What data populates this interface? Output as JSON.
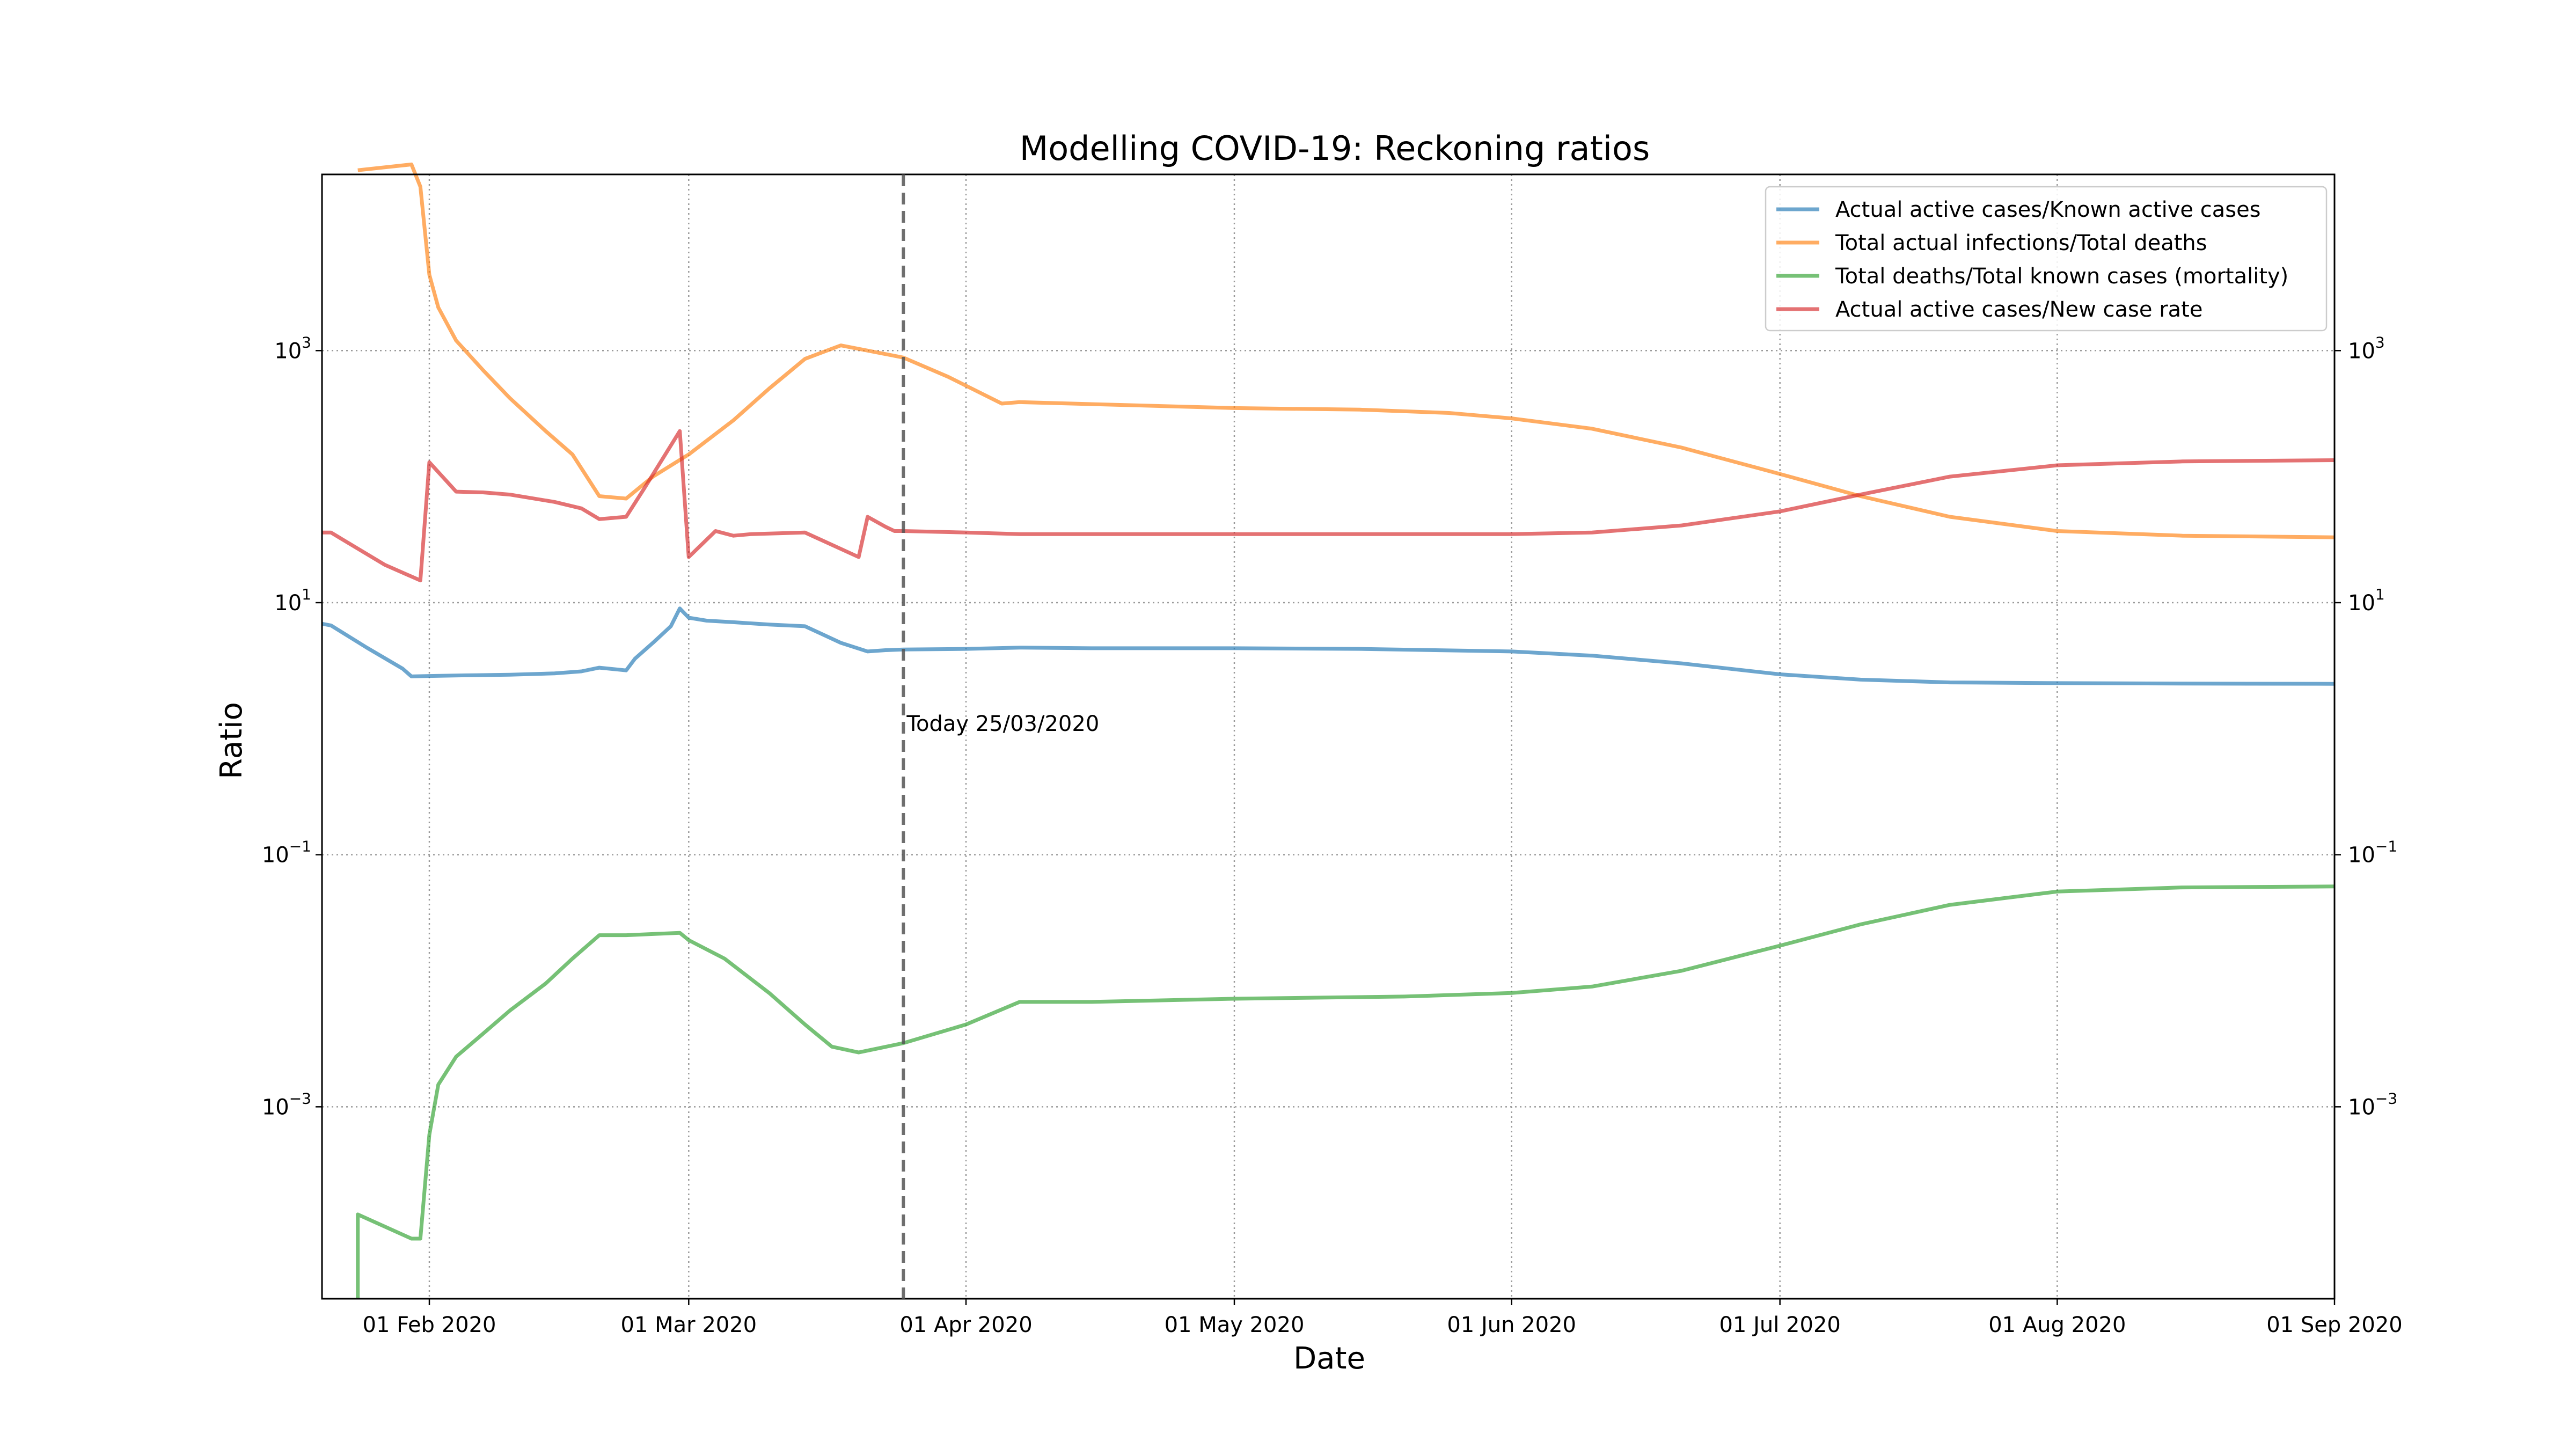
{
  "chart_data": {
    "type": "line",
    "title": "Modelling COVID-19: Reckoning ratios",
    "xlabel": "Date",
    "ylabel": "Ratio",
    "yscale": "log",
    "xlim": [
      "2020-01-20",
      "2020-09-01"
    ],
    "ylim": [
      3e-05,
      25000
    ],
    "grid": true,
    "legend_position": "top-right",
    "x_ticks": [
      {
        "date": "2020-02-01",
        "label": "01 Feb 2020"
      },
      {
        "date": "2020-03-01",
        "label": "01 Mar 2020"
      },
      {
        "date": "2020-04-01",
        "label": "01 Apr 2020"
      },
      {
        "date": "2020-05-01",
        "label": "01 May 2020"
      },
      {
        "date": "2020-06-01",
        "label": "01 Jun 2020"
      },
      {
        "date": "2020-07-01",
        "label": "01 Jul 2020"
      },
      {
        "date": "2020-08-01",
        "label": "01 Aug 2020"
      },
      {
        "date": "2020-09-01",
        "label": "01 Sep 2020"
      }
    ],
    "y_ticks": [
      {
        "value": 0.001,
        "base": "10",
        "exp": "−3"
      },
      {
        "value": 0.1,
        "base": "10",
        "exp": "−1"
      },
      {
        "value": 10,
        "base": "10",
        "exp": "1"
      },
      {
        "value": 1000,
        "base": "10",
        "exp": "3"
      }
    ],
    "annotation": {
      "date": "2020-03-25",
      "text": "Today 25/03/2020",
      "y": 1.1
    },
    "series": [
      {
        "name": "Actual active cases/Known active cases",
        "color": "#1f77b4",
        "points": [
          [
            "2020-01-20",
            6.8
          ],
          [
            "2020-01-21",
            6.6
          ],
          [
            "2020-01-25",
            4.4
          ],
          [
            "2020-01-29",
            3.0
          ],
          [
            "2020-01-30",
            2.6
          ],
          [
            "2020-02-01",
            2.62
          ],
          [
            "2020-02-05",
            2.65
          ],
          [
            "2020-02-10",
            2.68
          ],
          [
            "2020-02-15",
            2.75
          ],
          [
            "2020-02-18",
            2.85
          ],
          [
            "2020-02-20",
            3.05
          ],
          [
            "2020-02-23",
            2.9
          ],
          [
            "2020-02-24",
            3.6
          ],
          [
            "2020-02-26",
            4.8
          ],
          [
            "2020-02-28",
            6.5
          ],
          [
            "2020-02-29",
            9.0
          ],
          [
            "2020-03-01",
            7.6
          ],
          [
            "2020-03-03",
            7.2
          ],
          [
            "2020-03-06",
            7.0
          ],
          [
            "2020-03-10",
            6.7
          ],
          [
            "2020-03-14",
            6.5
          ],
          [
            "2020-03-18",
            4.8
          ],
          [
            "2020-03-21",
            4.1
          ],
          [
            "2020-03-23",
            4.2
          ],
          [
            "2020-03-25",
            4.25
          ],
          [
            "2020-04-01",
            4.3
          ],
          [
            "2020-04-07",
            4.4
          ],
          [
            "2020-04-15",
            4.35
          ],
          [
            "2020-05-01",
            4.35
          ],
          [
            "2020-05-15",
            4.3
          ],
          [
            "2020-06-01",
            4.1
          ],
          [
            "2020-06-10",
            3.8
          ],
          [
            "2020-06-20",
            3.3
          ],
          [
            "2020-07-01",
            2.7
          ],
          [
            "2020-07-10",
            2.45
          ],
          [
            "2020-07-20",
            2.33
          ],
          [
            "2020-08-01",
            2.3
          ],
          [
            "2020-08-15",
            2.28
          ],
          [
            "2020-09-01",
            2.27
          ]
        ]
      },
      {
        "name": "Total actual infections/Total deaths",
        "color": "#ff7f0e",
        "points": [
          [
            "2020-01-24",
            27000
          ],
          [
            "2020-01-30",
            30000
          ],
          [
            "2020-01-31",
            20000
          ],
          [
            "2020-02-01",
            4000
          ],
          [
            "2020-02-02",
            2200
          ],
          [
            "2020-02-04",
            1200
          ],
          [
            "2020-02-07",
            700
          ],
          [
            "2020-02-10",
            420
          ],
          [
            "2020-02-14",
            230
          ],
          [
            "2020-02-17",
            150
          ],
          [
            "2020-02-20",
            70
          ],
          [
            "2020-02-23",
            67
          ],
          [
            "2020-02-26",
            100
          ],
          [
            "2020-03-01",
            150
          ],
          [
            "2020-03-06",
            280
          ],
          [
            "2020-03-10",
            500
          ],
          [
            "2020-03-14",
            860
          ],
          [
            "2020-03-18",
            1100
          ],
          [
            "2020-03-21",
            1000
          ],
          [
            "2020-03-25",
            880
          ],
          [
            "2020-03-30",
            620
          ],
          [
            "2020-04-05",
            380
          ],
          [
            "2020-04-07",
            390
          ],
          [
            "2020-05-01",
            350
          ],
          [
            "2020-05-15",
            340
          ],
          [
            "2020-05-25",
            320
          ],
          [
            "2020-06-01",
            290
          ],
          [
            "2020-06-10",
            240
          ],
          [
            "2020-06-20",
            170
          ],
          [
            "2020-07-01",
            105
          ],
          [
            "2020-07-10",
            70
          ],
          [
            "2020-07-20",
            48
          ],
          [
            "2020-08-01",
            37
          ],
          [
            "2020-08-15",
            34
          ],
          [
            "2020-09-01",
            33
          ]
        ]
      },
      {
        "name": "Total deaths/Total known cases (mortality)",
        "color": "#2ca02c",
        "points": [
          [
            "2020-01-24",
            3e-05
          ],
          [
            "2020-01-24",
            0.00014
          ],
          [
            "2020-01-30",
            9e-05
          ],
          [
            "2020-01-31",
            9e-05
          ],
          [
            "2020-02-01",
            0.0006
          ],
          [
            "2020-02-02",
            0.0015
          ],
          [
            "2020-02-04",
            0.0025
          ],
          [
            "2020-02-07",
            0.0038
          ],
          [
            "2020-02-10",
            0.0058
          ],
          [
            "2020-02-14",
            0.0095
          ],
          [
            "2020-02-17",
            0.015
          ],
          [
            "2020-02-20",
            0.023
          ],
          [
            "2020-02-23",
            0.023
          ],
          [
            "2020-02-26",
            0.0235
          ],
          [
            "2020-02-29",
            0.024
          ],
          [
            "2020-03-01",
            0.021
          ],
          [
            "2020-03-05",
            0.015
          ],
          [
            "2020-03-10",
            0.008
          ],
          [
            "2020-03-14",
            0.0045
          ],
          [
            "2020-03-17",
            0.003
          ],
          [
            "2020-03-20",
            0.0027
          ],
          [
            "2020-03-25",
            0.0032
          ],
          [
            "2020-04-01",
            0.0045
          ],
          [
            "2020-04-07",
            0.0068
          ],
          [
            "2020-04-15",
            0.0068
          ],
          [
            "2020-05-01",
            0.0072
          ],
          [
            "2020-05-20",
            0.0075
          ],
          [
            "2020-06-01",
            0.008
          ],
          [
            "2020-06-10",
            0.009
          ],
          [
            "2020-06-20",
            0.012
          ],
          [
            "2020-07-01",
            0.019
          ],
          [
            "2020-07-10",
            0.028
          ],
          [
            "2020-07-20",
            0.04
          ],
          [
            "2020-08-01",
            0.051
          ],
          [
            "2020-08-15",
            0.055
          ],
          [
            "2020-09-01",
            0.056
          ]
        ]
      },
      {
        "name": "Actual active cases/New case rate",
        "color": "#d62728",
        "points": [
          [
            "2020-01-20",
            36
          ],
          [
            "2020-01-21",
            36
          ],
          [
            "2020-01-27",
            20
          ],
          [
            "2020-01-31",
            15
          ],
          [
            "2020-02-01",
            130
          ],
          [
            "2020-02-04",
            76
          ],
          [
            "2020-02-07",
            75
          ],
          [
            "2020-02-10",
            72
          ],
          [
            "2020-02-15",
            63
          ],
          [
            "2020-02-18",
            56
          ],
          [
            "2020-02-20",
            46
          ],
          [
            "2020-02-23",
            48
          ],
          [
            "2020-02-25",
            80
          ],
          [
            "2020-02-29",
            230
          ],
          [
            "2020-03-01",
            23
          ],
          [
            "2020-03-04",
            37
          ],
          [
            "2020-03-06",
            34
          ],
          [
            "2020-03-08",
            35
          ],
          [
            "2020-03-14",
            36
          ],
          [
            "2020-03-20",
            23
          ],
          [
            "2020-03-21",
            48
          ],
          [
            "2020-03-23",
            40
          ],
          [
            "2020-03-24",
            37
          ],
          [
            "2020-03-25",
            37
          ],
          [
            "2020-04-01",
            36
          ],
          [
            "2020-04-07",
            35
          ],
          [
            "2020-05-01",
            35
          ],
          [
            "2020-06-01",
            35
          ],
          [
            "2020-06-10",
            36
          ],
          [
            "2020-06-20",
            41
          ],
          [
            "2020-07-01",
            53
          ],
          [
            "2020-07-10",
            72
          ],
          [
            "2020-07-20",
            100
          ],
          [
            "2020-08-01",
            123
          ],
          [
            "2020-08-15",
            132
          ],
          [
            "2020-09-01",
            135
          ]
        ]
      }
    ]
  }
}
